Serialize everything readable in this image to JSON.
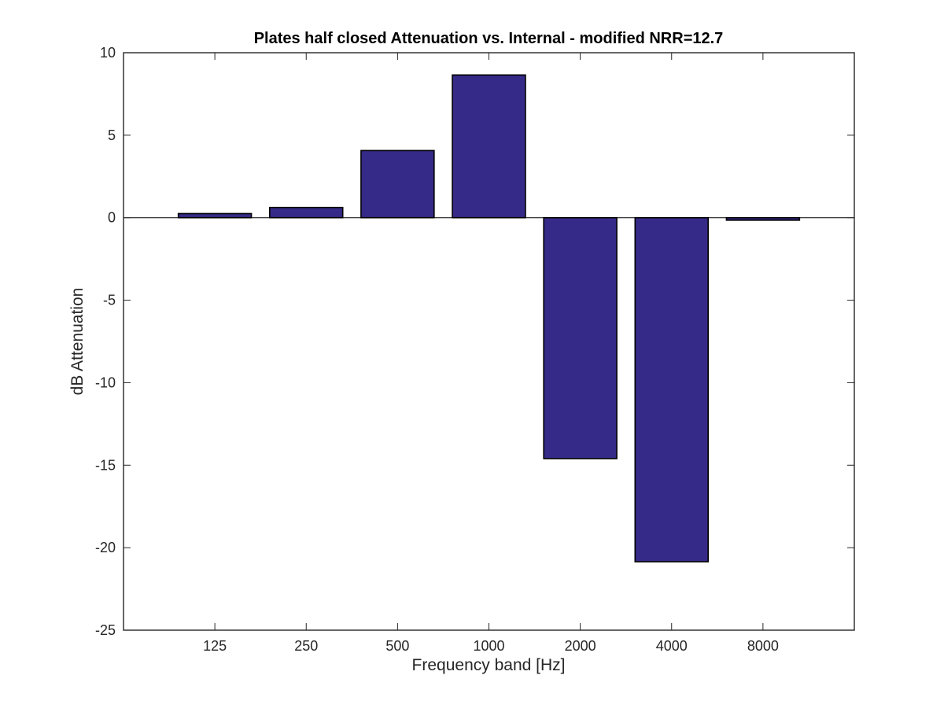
{
  "chart_data": {
    "type": "bar",
    "title": "Plates half closed Attenuation vs. Internal - modified NRR=12.7",
    "xlabel": "Frequency band [Hz]",
    "ylabel": "dB Attenuation",
    "categories": [
      "125",
      "250",
      "500",
      "1000",
      "2000",
      "4000",
      "8000"
    ],
    "values": [
      0.25,
      0.62,
      4.07,
      8.65,
      -14.6,
      -20.85,
      -0.15
    ],
    "ylim": [
      -25,
      10
    ],
    "yticks": [
      10,
      5,
      0,
      -5,
      -10,
      -15,
      -20,
      -25
    ],
    "grid": false,
    "bar_color": "#352a87",
    "edge_color": "#000000"
  }
}
